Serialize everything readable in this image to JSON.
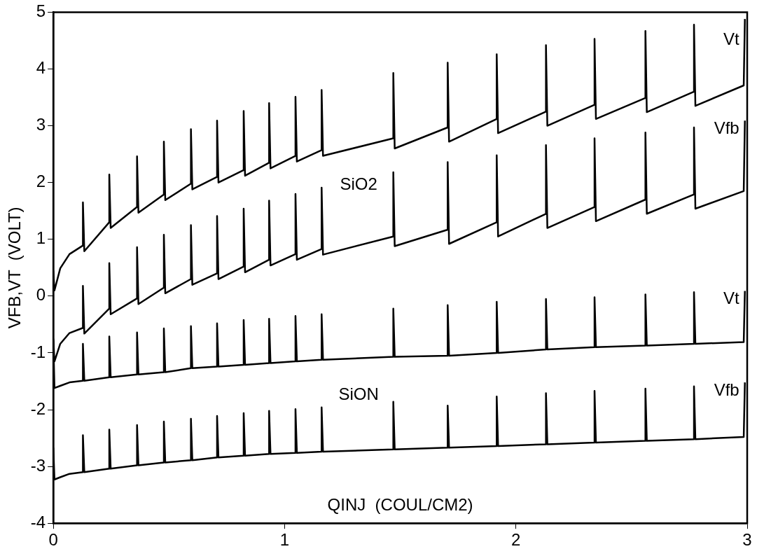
{
  "chart_data": {
    "type": "line",
    "xlabel": "QINJ  (COUL/CM2)",
    "ylabel": "VFB,VT  (VOLT)",
    "xlim": [
      0,
      3
    ],
    "xticks": [
      0,
      1,
      2,
      3
    ],
    "ylim": [
      -4,
      5
    ],
    "yticks": [
      -4,
      -3,
      -2,
      -1,
      0,
      1,
      2,
      3,
      4,
      5
    ],
    "grid": false,
    "annotations": [
      "SiO2",
      "SiON"
    ],
    "x": [
      0,
      0.005,
      0.03,
      0.07,
      0.128,
      0.128,
      0.134,
      0.242,
      0.242,
      0.248,
      0.362,
      0.362,
      0.368,
      0.478,
      0.478,
      0.484,
      0.595,
      0.595,
      0.601,
      0.708,
      0.708,
      0.714,
      0.823,
      0.823,
      0.829,
      0.933,
      0.933,
      0.939,
      1.047,
      1.047,
      1.053,
      1.16,
      1.16,
      1.166,
      1.47,
      1.47,
      1.476,
      1.705,
      1.705,
      1.711,
      1.917,
      1.917,
      1.923,
      2.13,
      2.13,
      2.136,
      2.34,
      2.34,
      2.346,
      2.56,
      2.56,
      2.566,
      2.77,
      2.77,
      2.776,
      2.985,
      2.99
    ],
    "series": [
      {
        "name": "Vt",
        "color": "#000000",
        "values": [
          0.45,
          0.1,
          0.49,
          0.74,
          0.89,
          1.65,
          0.79,
          1.3,
          2.14,
          1.2,
          1.57,
          2.46,
          1.47,
          1.79,
          2.72,
          1.69,
          1.98,
          2.94,
          1.88,
          2.1,
          3.09,
          2.0,
          2.22,
          3.26,
          2.12,
          2.35,
          3.4,
          2.25,
          2.47,
          3.51,
          2.37,
          2.57,
          3.63,
          2.47,
          2.78,
          3.93,
          2.6,
          2.97,
          4.11,
          2.72,
          3.12,
          4.26,
          2.87,
          3.25,
          4.42,
          3.0,
          3.37,
          4.53,
          3.12,
          3.49,
          4.67,
          3.24,
          3.6,
          4.78,
          3.35,
          3.71,
          4.88
        ]
      },
      {
        "name": "Vfb",
        "color": "#000000",
        "values": [
          -0.75,
          -1.15,
          -0.84,
          -0.65,
          -0.56,
          0.18,
          -0.66,
          -0.22,
          0.58,
          -0.32,
          -0.04,
          0.86,
          -0.14,
          0.15,
          1.08,
          0.05,
          0.3,
          1.25,
          0.2,
          0.4,
          1.41,
          0.3,
          0.52,
          1.54,
          0.42,
          0.64,
          1.68,
          0.54,
          0.74,
          1.8,
          0.64,
          0.83,
          1.91,
          0.73,
          1.05,
          2.18,
          0.88,
          1.17,
          2.36,
          0.92,
          1.3,
          2.48,
          1.05,
          1.45,
          2.66,
          1.2,
          1.57,
          2.78,
          1.32,
          1.7,
          2.88,
          1.45,
          1.79,
          2.97,
          1.54,
          1.85,
          3.09
        ]
      },
      {
        "name": "Vt",
        "color": "#000000",
        "values": [
          -0.78,
          -1.62,
          -1.58,
          -1.52,
          -1.49,
          -0.84,
          -1.49,
          -1.43,
          -0.71,
          -1.43,
          -1.38,
          -0.64,
          -1.38,
          -1.34,
          -0.57,
          -1.34,
          -1.27,
          -0.53,
          -1.27,
          -1.24,
          -0.48,
          -1.24,
          -1.21,
          -0.42,
          -1.21,
          -1.18,
          -0.4,
          -1.18,
          -1.15,
          -0.35,
          -1.15,
          -1.12,
          -0.32,
          -1.12,
          -1.07,
          -0.22,
          -1.07,
          -1.05,
          -0.16,
          -1.05,
          -1.0,
          -0.1,
          -1.0,
          -0.94,
          -0.05,
          -0.94,
          -0.9,
          -0.02,
          -0.9,
          -0.87,
          0.03,
          -0.87,
          -0.84,
          0.07,
          -0.84,
          -0.81,
          0.09
        ]
      },
      {
        "name": "Vfb",
        "color": "#000000",
        "values": [
          -2.67,
          -3.23,
          -3.19,
          -3.13,
          -3.1,
          -2.45,
          -3.1,
          -3.04,
          -2.35,
          -3.04,
          -2.98,
          -2.27,
          -2.98,
          -2.93,
          -2.21,
          -2.93,
          -2.89,
          -2.16,
          -2.89,
          -2.84,
          -2.11,
          -2.84,
          -2.81,
          -2.06,
          -2.81,
          -2.78,
          -2.02,
          -2.78,
          -2.76,
          -1.99,
          -2.76,
          -2.74,
          -1.96,
          -2.74,
          -2.7,
          -1.86,
          -2.7,
          -2.67,
          -1.93,
          -2.67,
          -2.64,
          -1.77,
          -2.64,
          -2.61,
          -1.71,
          -2.61,
          -2.58,
          -1.67,
          -2.58,
          -2.55,
          -1.63,
          -2.55,
          -2.52,
          -1.59,
          -2.52,
          -2.48,
          -1.52
        ]
      }
    ]
  }
}
